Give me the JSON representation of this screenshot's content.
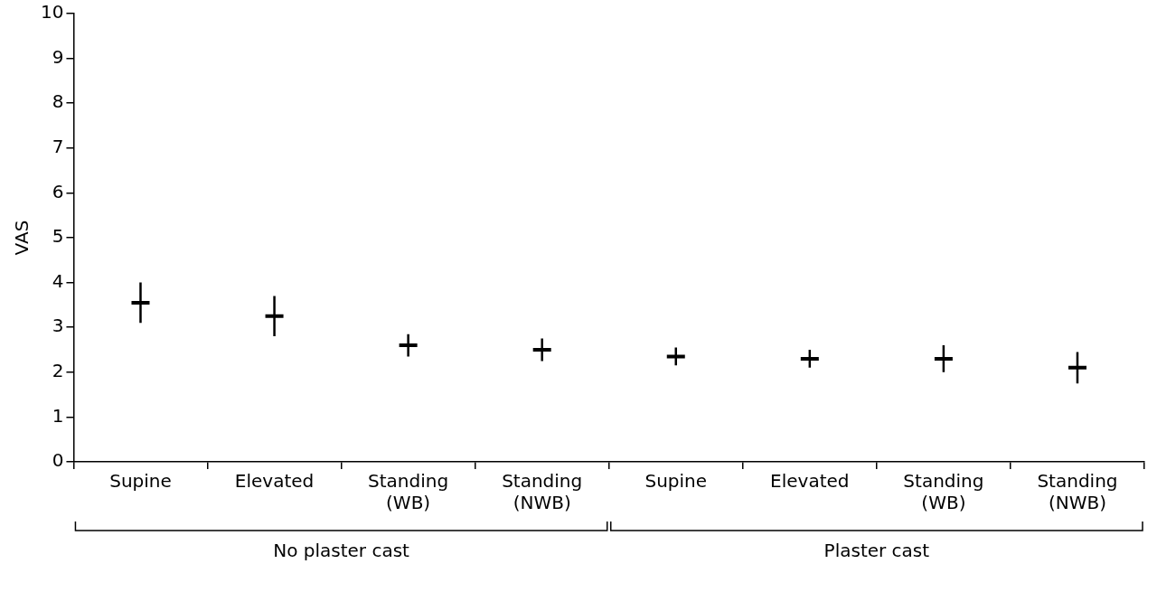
{
  "chart_data": {
    "type": "scatter",
    "y_label": "VAS",
    "groups": [
      {
        "name": "No plaster cast",
        "categories": [
          "Supine",
          "Elevated",
          "Standing (WB)",
          "Standing (NWB)"
        ],
        "values": [
          3.55,
          3.25,
          2.6,
          2.5
        ],
        "errors": [
          0.45,
          0.45,
          0.25,
          0.25
        ]
      },
      {
        "name": "Plaster cast",
        "categories": [
          "Supine",
          "Elevated",
          "Standing (WB)",
          "Standing (NWB)"
        ],
        "values": [
          2.35,
          2.3,
          2.3,
          2.1
        ],
        "errors": [
          0.2,
          0.2,
          0.3,
          0.35
        ]
      }
    ],
    "ylim": [
      0,
      10
    ],
    "yticks": [
      0,
      1,
      2,
      3,
      4,
      5,
      6,
      7,
      8,
      9,
      10
    ],
    "grid": false,
    "color": "#000000",
    "marker": "dash"
  }
}
